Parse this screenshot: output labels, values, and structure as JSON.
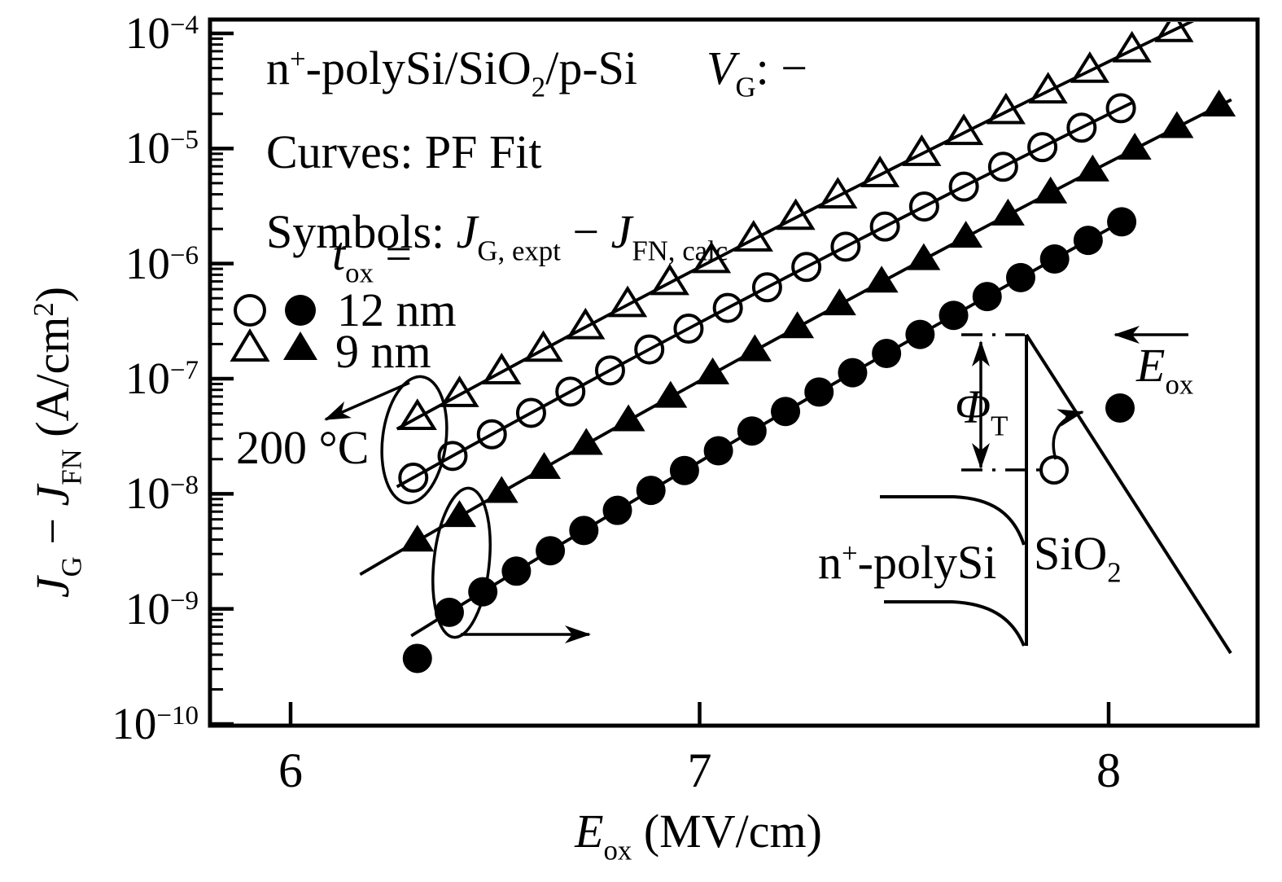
{
  "canvas": {
    "background": "#ffffff",
    "ink": "#000000"
  },
  "header": {
    "device_runs": [
      {
        "t": "n"
      },
      {
        "t": "+",
        "v": "sup"
      },
      {
        "t": "-polySi/SiO"
      },
      {
        "t": "2",
        "v": "sub"
      },
      {
        "t": "/p-Si"
      }
    ],
    "gate_bias_runs": [
      {
        "t": "V",
        "v": "i"
      },
      {
        "t": "G",
        "v": "sub"
      },
      {
        "t": ": −"
      }
    ],
    "curves_runs": [
      {
        "t": "Curves: PF Fit"
      }
    ],
    "symbols_runs": [
      {
        "t": "Symbols: "
      },
      {
        "t": "J",
        "v": "i"
      },
      {
        "t": "G, expt",
        "v": "sub"
      },
      {
        "t": " − "
      },
      {
        "t": "J",
        "v": "i"
      },
      {
        "t": "FN, calc",
        "v": "sub"
      }
    ]
  },
  "legend": {
    "tox_runs": [
      {
        "t": "t",
        "v": "i"
      },
      {
        "t": "ox",
        "v": "sub"
      },
      {
        "t": " ="
      }
    ],
    "rows": [
      {
        "label": "12 nm",
        "markers": [
          "circle-open",
          "circle-filled"
        ]
      },
      {
        "label": "9 nm",
        "markers": [
          "triangle-open",
          "triangle-filled"
        ]
      }
    ],
    "temperature_label": "200 °C"
  },
  "inset": {
    "barrier_runs": [
      {
        "t": "Φ",
        "v": "i"
      },
      {
        "t": "T",
        "v": "sub"
      }
    ],
    "field_runs": [
      {
        "t": "E",
        "v": "i"
      },
      {
        "t": "ox",
        "v": "sub"
      }
    ],
    "electrode_runs": [
      {
        "t": "n"
      },
      {
        "t": "+",
        "v": "sup"
      },
      {
        "t": "-polySi"
      }
    ],
    "oxide_runs": [
      {
        "t": "SiO"
      },
      {
        "t": "2",
        "v": "sub"
      }
    ]
  },
  "chart_data": {
    "type": "scatter",
    "title": "",
    "xlabel_runs": [
      {
        "t": "E",
        "v": "i"
      },
      {
        "t": "ox",
        "v": "sub"
      },
      {
        "t": " (MV/cm)"
      }
    ],
    "ylabel_runs": [
      {
        "t": "J",
        "v": "i"
      },
      {
        "t": "G",
        "v": "sub"
      },
      {
        "t": " − "
      },
      {
        "t": "J",
        "v": "i"
      },
      {
        "t": "FN",
        "v": "sub"
      },
      {
        "t": " (A/cm"
      },
      {
        "t": "2",
        "v": "sup"
      },
      {
        "t": ")"
      }
    ],
    "x_axis": {
      "label": "Eox (MV/cm)",
      "min": 5.8,
      "max": 8.37,
      "ticks": [
        6,
        7,
        8
      ]
    },
    "y_axis": {
      "label": "JG - JFN (A/cm2)",
      "log": true,
      "exp_min": -10,
      "exp_max": -4,
      "tick_exponents": [
        -4,
        -5,
        -6,
        -7,
        -8,
        -9,
        -10
      ]
    },
    "grid": false,
    "legend_position": "upper-left",
    "fit_model_note": "curves: log10(J) linear in sqrt(E) (Poole-Frenkel fit)",
    "series": [
      {
        "name": "tox = 9 nm, open triangles (200 °C group)",
        "marker": "triangle-open",
        "tox_label": "9 nm",
        "fit_line": {
          "E": [
            6.26,
            8.37
          ],
          "log10J": [
            -7.437,
            -3.613
          ]
        },
        "points_E_log10J": [
          [
            6.31,
            -7.34
          ],
          [
            6.413,
            -7.141
          ],
          [
            6.516,
            -6.943
          ],
          [
            6.618,
            -6.747
          ],
          [
            6.721,
            -6.552
          ],
          [
            6.824,
            -6.359
          ],
          [
            6.927,
            -6.168
          ],
          [
            7.029,
            -5.977
          ],
          [
            7.132,
            -5.789
          ],
          [
            7.235,
            -5.601
          ],
          [
            7.338,
            -5.415
          ],
          [
            7.441,
            -5.23
          ],
          [
            7.543,
            -5.046
          ],
          [
            7.646,
            -4.864
          ],
          [
            7.749,
            -4.683
          ],
          [
            7.852,
            -4.503
          ],
          [
            7.954,
            -4.324
          ],
          [
            8.057,
            -4.146
          ],
          [
            8.16,
            -3.97
          ]
        ]
      },
      {
        "name": "tox = 12 nm, open circles (200 °C group)",
        "marker": "circle-open",
        "tox_label": "12 nm",
        "fit_line": {
          "E": [
            6.26,
            8.06
          ],
          "log10J": [
            -7.939,
            -4.597
          ]
        },
        "points_E_log10J": [
          [
            6.3,
            -7.86
          ],
          [
            6.396,
            -7.671
          ],
          [
            6.492,
            -7.483
          ],
          [
            6.588,
            -7.297
          ],
          [
            6.684,
            -7.112
          ],
          [
            6.781,
            -6.928
          ],
          [
            6.877,
            -6.746
          ],
          [
            6.973,
            -6.565
          ],
          [
            7.069,
            -6.385
          ],
          [
            7.165,
            -6.206
          ],
          [
            7.261,
            -6.029
          ],
          [
            7.357,
            -5.853
          ],
          [
            7.453,
            -5.678
          ],
          [
            7.549,
            -5.504
          ],
          [
            7.646,
            -5.331
          ],
          [
            7.742,
            -5.159
          ],
          [
            7.838,
            -4.988
          ],
          [
            7.934,
            -4.819
          ],
          [
            8.03,
            -4.65
          ]
        ]
      },
      {
        "name": "tox = 9 nm, filled triangles",
        "marker": "triangle-filled",
        "tox_label": "9 nm",
        "fit_line": {
          "E": [
            6.17,
            8.3
          ],
          "log10J": [
            -8.701,
            -4.576
          ]
        },
        "points_E_log10J": [
          [
            6.31,
            -8.41
          ],
          [
            6.413,
            -8.197
          ],
          [
            6.516,
            -7.987
          ],
          [
            6.62,
            -7.778
          ],
          [
            6.723,
            -7.57
          ],
          [
            6.826,
            -7.364
          ],
          [
            6.929,
            -7.16
          ],
          [
            7.032,
            -6.957
          ],
          [
            7.135,
            -6.756
          ],
          [
            7.239,
            -6.556
          ],
          [
            7.342,
            -6.357
          ],
          [
            7.445,
            -6.16
          ],
          [
            7.548,
            -5.964
          ],
          [
            7.651,
            -5.77
          ],
          [
            7.754,
            -5.577
          ],
          [
            7.858,
            -5.385
          ],
          [
            7.961,
            -5.194
          ],
          [
            8.064,
            -5.005
          ],
          [
            8.167,
            -4.817
          ],
          [
            8.27,
            -4.63
          ]
        ]
      },
      {
        "name": "tox = 12 nm, filled circles",
        "marker": "circle-filled",
        "tox_label": "12 nm",
        "fit_line": {
          "E": [
            6.295,
            8.05
          ],
          "log10J": [
            -9.234,
            -5.602
          ]
        },
        "points_E_log10J": [
          [
            6.388,
            -9.03
          ],
          [
            6.47,
            -8.851
          ],
          [
            6.552,
            -8.672
          ],
          [
            6.635,
            -8.495
          ],
          [
            6.717,
            -8.319
          ],
          [
            6.799,
            -8.144
          ],
          [
            6.881,
            -7.97
          ],
          [
            6.963,
            -7.798
          ],
          [
            7.046,
            -7.626
          ],
          [
            7.128,
            -7.455
          ],
          [
            7.21,
            -7.285
          ],
          [
            7.292,
            -7.116
          ],
          [
            7.374,
            -6.948
          ],
          [
            7.457,
            -6.781
          ],
          [
            7.539,
            -6.615
          ],
          [
            7.621,
            -6.45
          ],
          [
            7.703,
            -6.286
          ],
          [
            7.785,
            -6.122
          ],
          [
            7.868,
            -5.96
          ],
          [
            7.95,
            -5.798
          ],
          [
            8.032,
            -5.637
          ]
        ],
        "off_fit_point_E_log10J": [
          6.31,
          -9.43
        ]
      }
    ]
  }
}
